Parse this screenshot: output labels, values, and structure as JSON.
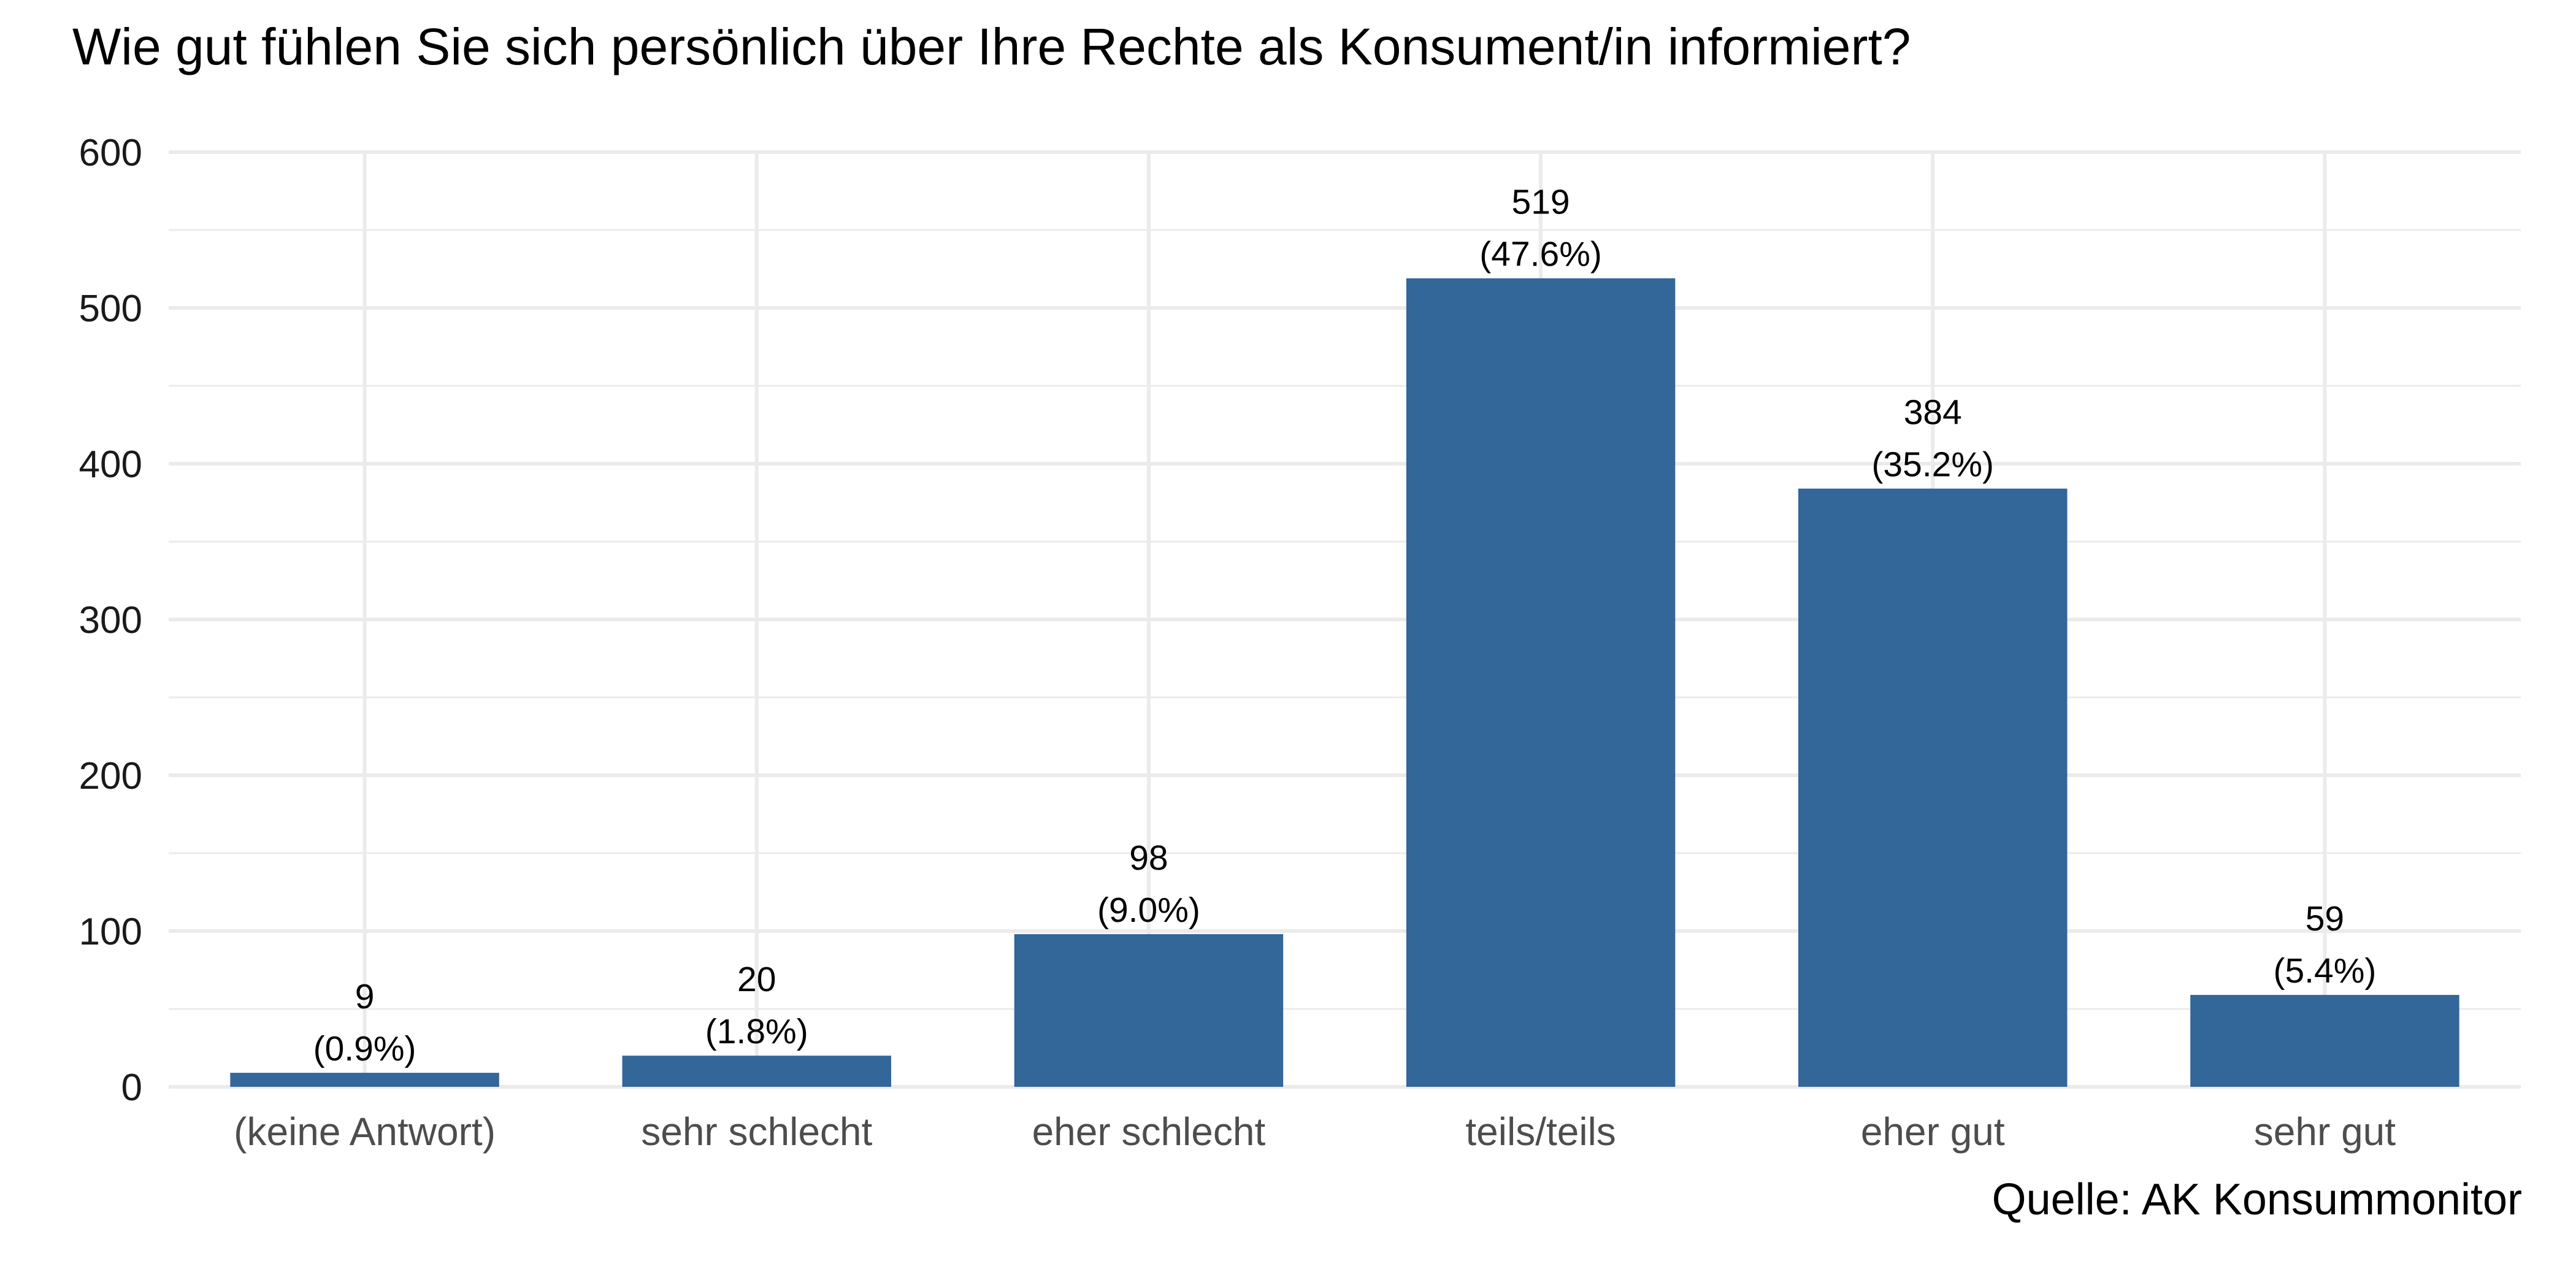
{
  "chart_data": {
    "type": "bar",
    "title": "Wie gut fühlen Sie sich persönlich über Ihre Rechte als Konsument/in informiert?",
    "caption": "Quelle: AK Konsummonitor",
    "xlabel": "",
    "ylabel": "",
    "categories": [
      "(keine Antwort)",
      "sehr schlecht",
      "eher schlecht",
      "teils/teils",
      "eher gut",
      "sehr gut"
    ],
    "values": [
      9,
      20,
      98,
      519,
      384,
      59
    ],
    "percent_labels": [
      "(0.9%)",
      "(1.8%)",
      "(9.0%)",
      "(47.6%)",
      "(35.2%)",
      "(5.4%)"
    ],
    "count_labels": [
      "9",
      "20",
      "98",
      "519",
      "384",
      "59"
    ],
    "ylim": [
      0,
      600
    ],
    "yticks": [
      0,
      100,
      200,
      300,
      400,
      500,
      600
    ],
    "ytick_labels": [
      "0",
      "100",
      "200",
      "300",
      "400",
      "500",
      "600"
    ],
    "grid": true,
    "legend": "none",
    "bar_color": "#336699"
  }
}
